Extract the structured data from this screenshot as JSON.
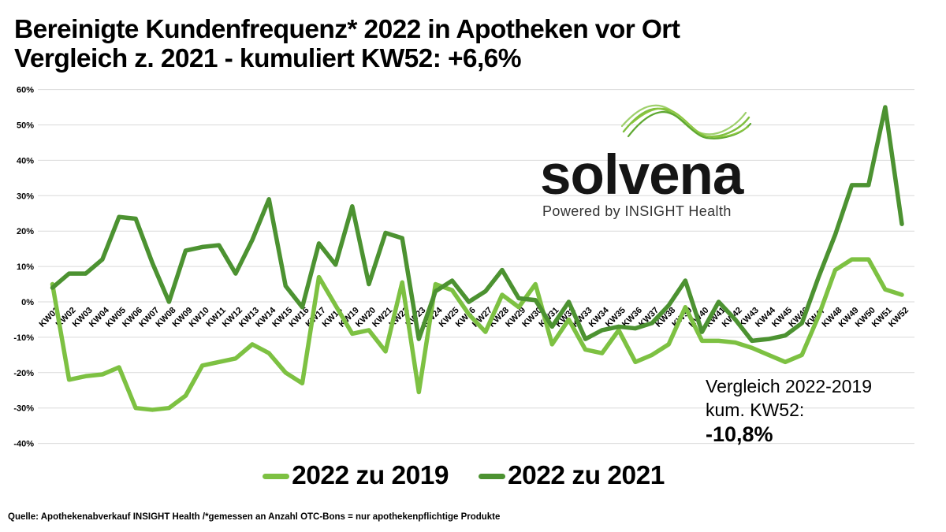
{
  "title": {
    "line1": "Bereinigte Kundenfrequenz* 2022 in Apotheken vor Ort",
    "line2": "Vergleich z. 2021 - kumuliert KW52: +6,6%"
  },
  "logo": {
    "wordmark": "solvena",
    "tagline": "Powered by INSIGHT Health"
  },
  "annotation": {
    "line1": "Vergleich 2022-2019",
    "line2": "kum. KW52:",
    "value": "-10,8%"
  },
  "footer": "Quelle: Apothekenabverkauf INSIGHT Health /*gemessen an Anzahl OTC-Bons = nur apothekenpflichtige Produkte",
  "colors": {
    "light_green": "#7DC142",
    "dark_green": "#4C9231",
    "grid": "#D9D9D9"
  },
  "chart_data": {
    "type": "line",
    "title": "Bereinigte Kundenfrequenz 2022 in Apotheken vor Ort",
    "categories": [
      "KW01",
      "KW02",
      "KW03",
      "KW04",
      "KW05",
      "KW06",
      "KW07",
      "KW08",
      "KW09",
      "KW10",
      "KW11",
      "KW12",
      "KW13",
      "KW14",
      "KW15",
      "KW16",
      "KW17",
      "KW18",
      "KW19",
      "KW20",
      "KW21",
      "KW22",
      "KW23",
      "KW24",
      "KW25",
      "KW26",
      "KW27",
      "KW28",
      "KW29",
      "KW30",
      "KW31",
      "KW32",
      "KW33",
      "KW34",
      "KW35",
      "KW36",
      "KW37",
      "KW38",
      "KW39",
      "KW40",
      "KW41",
      "KW42",
      "KW43",
      "KW44",
      "KW45",
      "KW46",
      "KW47",
      "KW48",
      "KW49",
      "KW50",
      "KW51",
      "KW52"
    ],
    "series": [
      {
        "name": "2022 zu 2019",
        "color_key": "light_green",
        "values": [
          5,
          -22,
          -21,
          -20.5,
          -18.5,
          -30,
          -30.5,
          -30,
          -26.5,
          -18,
          -17,
          -16,
          -12,
          -14.5,
          -20,
          -23,
          7,
          -1,
          -9,
          -8,
          -14,
          5.5,
          -25.5,
          5,
          3.3,
          -3.5,
          -8.5,
          2,
          -1.5,
          5,
          -12,
          -5,
          -13.5,
          -14.5,
          -8,
          -17,
          -15,
          -12,
          -1.5,
          -11,
          -11,
          -11.5,
          -13,
          -15,
          -17,
          -15,
          -4,
          9,
          12,
          12,
          3.5,
          2
        ]
      },
      {
        "name": "2022 zu 2021",
        "color_key": "dark_green",
        "values": [
          4,
          8,
          8,
          12,
          24,
          23.5,
          11,
          0,
          14.5,
          15.5,
          16,
          8,
          17.5,
          29,
          4.5,
          -1.5,
          16.5,
          10.5,
          27,
          5,
          19.5,
          18,
          -10.5,
          3,
          6,
          0,
          3,
          9,
          1,
          0.5,
          -7,
          0,
          -10.5,
          -8,
          -7,
          -7.5,
          -6,
          -1,
          6,
          -8.5,
          0,
          -5,
          -11,
          -10.5,
          -9.5,
          -6,
          7,
          19,
          33,
          33,
          55,
          22
        ]
      }
    ],
    "ylim": [
      -40,
      60
    ],
    "ytick_step": 10,
    "ytick_suffix": "%",
    "grid": true,
    "legend_position": "bottom",
    "x_labels_at_zero_line": true
  }
}
